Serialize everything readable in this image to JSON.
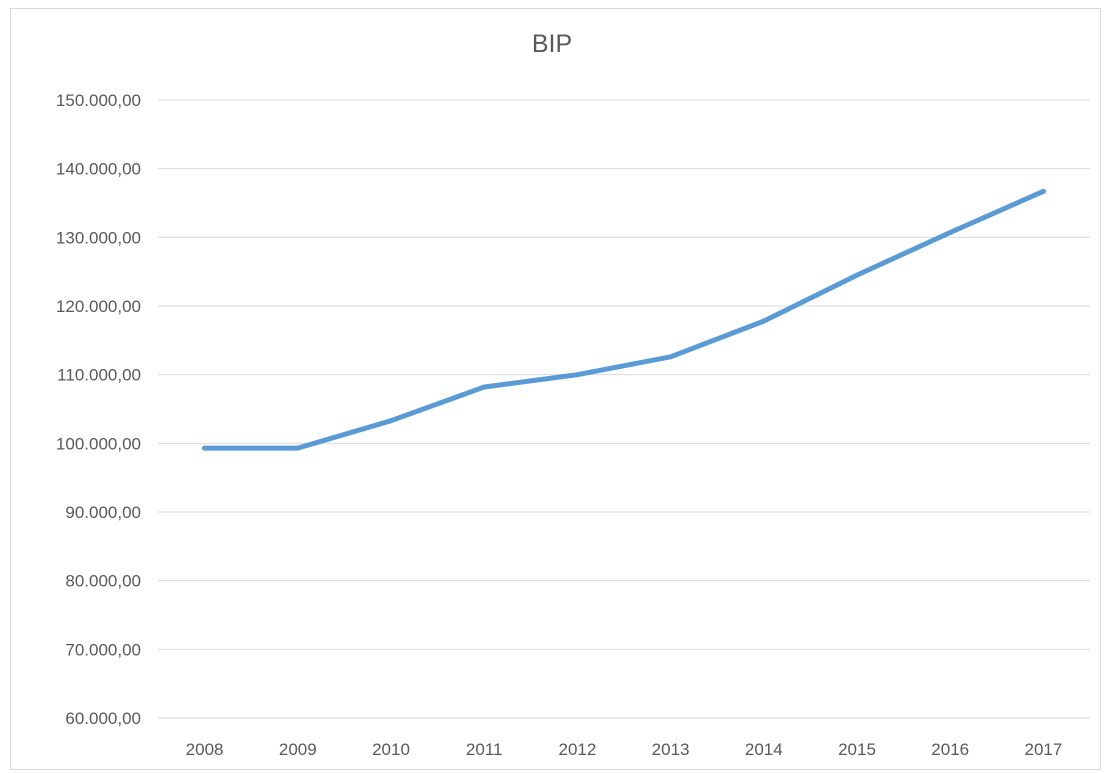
{
  "chart_data": {
    "type": "line",
    "title": "BIP",
    "xlabel": "",
    "ylabel": "",
    "categories": [
      "2008",
      "2009",
      "2010",
      "2011",
      "2012",
      "2013",
      "2014",
      "2015",
      "2016",
      "2017"
    ],
    "series": [
      {
        "values": [
          99300,
          99300,
          103300,
          108200,
          110000,
          112600,
          117800,
          124500,
          130700,
          136700
        ],
        "color": "#5b9bd5"
      }
    ],
    "ylim": [
      60000,
      150000
    ],
    "ytick_step": 10000,
    "ytick_labels": [
      "60.000,00",
      "70.000,00",
      "80.000,00",
      "90.000,00",
      "100.000,00",
      "110.000,00",
      "120.000,00",
      "130.000,00",
      "140.000,00",
      "150.000,00"
    ],
    "grid": true,
    "legend": "none",
    "gridline_color": "#d9d9d9"
  }
}
